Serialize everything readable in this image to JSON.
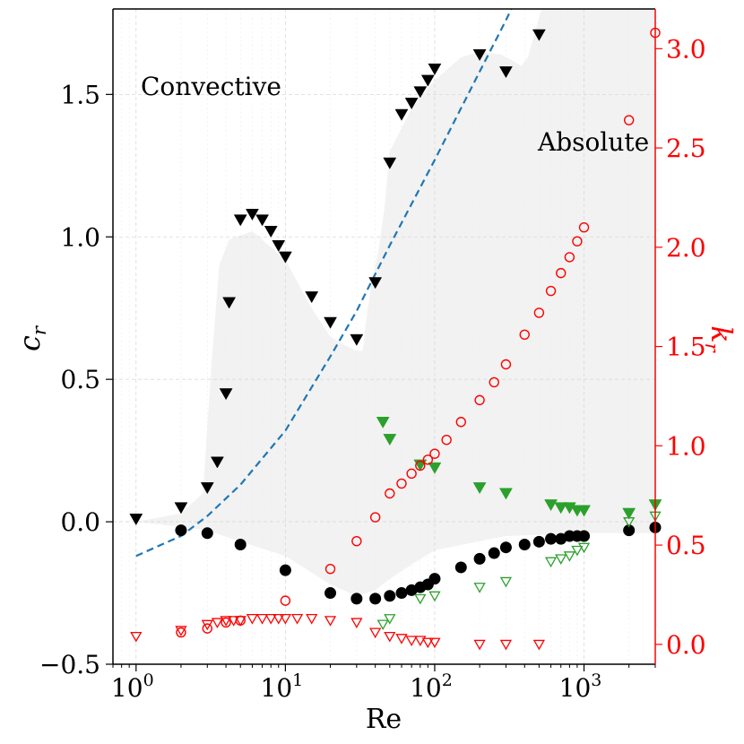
{
  "chart_data": {
    "type": "scatter",
    "x_label": "Re",
    "y_label_left": "c",
    "y_label_left_sub": "r",
    "y_label_right": "k",
    "y_label_right_sub": "r",
    "x_scale": "log",
    "xlim": [
      0.7,
      3000
    ],
    "ylim_left": [
      -0.5,
      1.8
    ],
    "ylim_right": [
      -0.1,
      3.2
    ],
    "x_ticks": [
      {
        "value": 1,
        "base": "10",
        "exp": "0"
      },
      {
        "value": 10,
        "base": "10",
        "exp": "1"
      },
      {
        "value": 100,
        "base": "10",
        "exp": "2"
      },
      {
        "value": 1000,
        "base": "10",
        "exp": "3"
      }
    ],
    "y_ticks_left": [
      {
        "value": -0.5,
        "label": "−0.5"
      },
      {
        "value": 0.0,
        "label": "0.0"
      },
      {
        "value": 0.5,
        "label": "0.5"
      },
      {
        "value": 1.0,
        "label": "1.0"
      },
      {
        "value": 1.5,
        "label": "1.5"
      }
    ],
    "y_ticks_right": [
      {
        "value": 0.0,
        "label": "0.0"
      },
      {
        "value": 0.5,
        "label": "0.5"
      },
      {
        "value": 1.0,
        "label": "1.0"
      },
      {
        "value": 1.5,
        "label": "1.5"
      },
      {
        "value": 2.0,
        "label": "2.0"
      },
      {
        "value": 2.5,
        "label": "2.5"
      },
      {
        "value": 3.0,
        "label": "3.0"
      }
    ],
    "annotations": [
      {
        "text": "Convective",
        "x": 1.0,
        "y": 1.55
      },
      {
        "text": "Absolute",
        "x": 450,
        "y": 1.33
      }
    ],
    "colors": {
      "black": "#000000",
      "green": "#2ca02c",
      "red": "#ff0000",
      "blue": "#1f77b4",
      "region": "#f2f2f2"
    },
    "absolute_region": {
      "upper": [
        [
          1,
          0.0
        ],
        [
          2,
          0.03
        ],
        [
          2.8,
          0.1
        ],
        [
          3.2,
          0.55
        ],
        [
          3.6,
          0.9
        ],
        [
          4.2,
          0.99
        ],
        [
          6,
          1.02
        ],
        [
          10,
          0.92
        ],
        [
          15,
          0.75
        ],
        [
          20,
          0.65
        ],
        [
          25,
          0.62
        ],
        [
          30,
          0.6
        ],
        [
          33,
          0.6
        ],
        [
          35,
          0.72
        ],
        [
          38,
          0.85
        ],
        [
          42,
          0.95
        ],
        [
          46,
          1.1
        ],
        [
          50,
          1.3
        ],
        [
          70,
          1.45
        ],
        [
          100,
          1.55
        ],
        [
          150,
          1.63
        ],
        [
          200,
          1.65
        ],
        [
          280,
          1.64
        ],
        [
          330,
          1.62
        ],
        [
          380,
          1.6
        ],
        [
          420,
          1.63
        ],
        [
          470,
          1.72
        ],
        [
          520,
          1.8
        ],
        [
          3000,
          1.8
        ]
      ],
      "lower": [
        [
          3000,
          -0.04
        ],
        [
          1000,
          -0.04
        ],
        [
          300,
          -0.05
        ],
        [
          100,
          -0.1
        ],
        [
          70,
          -0.15
        ],
        [
          50,
          -0.2
        ],
        [
          40,
          -0.24
        ],
        [
          30,
          -0.26
        ],
        [
          20,
          -0.22
        ],
        [
          10,
          -0.12
        ],
        [
          5,
          -0.07
        ],
        [
          3,
          -0.03
        ],
        [
          1.5,
          -0.01
        ],
        [
          1,
          0.0
        ]
      ]
    },
    "dashed_curve": {
      "name": "fit",
      "points": [
        [
          1,
          -0.12
        ],
        [
          2,
          -0.05
        ],
        [
          3,
          0.02
        ],
        [
          5,
          0.13
        ],
        [
          10,
          0.32
        ],
        [
          20,
          0.58
        ],
        [
          30,
          0.74
        ],
        [
          50,
          0.97
        ],
        [
          100,
          1.27
        ],
        [
          200,
          1.58
        ],
        [
          300,
          1.76
        ],
        [
          340,
          1.82
        ]
      ]
    },
    "series": [
      {
        "name": "black-triangles",
        "axis": "left",
        "marker": "triangle-down-filled",
        "color": "#000000",
        "points": [
          [
            1,
            0.01
          ],
          [
            2,
            0.05
          ],
          [
            3,
            0.12
          ],
          [
            3.5,
            0.21
          ],
          [
            4,
            0.45
          ],
          [
            4.2,
            0.77
          ],
          [
            5,
            1.06
          ],
          [
            6,
            1.08
          ],
          [
            7,
            1.06
          ],
          [
            8,
            1.02
          ],
          [
            9,
            0.97
          ],
          [
            10,
            0.93
          ],
          [
            15,
            0.79
          ],
          [
            20,
            0.7
          ],
          [
            30,
            0.64
          ],
          [
            40,
            0.84
          ],
          [
            50,
            1.26
          ],
          [
            60,
            1.43
          ],
          [
            70,
            1.47
          ],
          [
            80,
            1.51
          ],
          [
            90,
            1.55
          ],
          [
            100,
            1.59
          ],
          [
            200,
            1.64
          ],
          [
            300,
            1.58
          ],
          [
            500,
            1.71
          ]
        ]
      },
      {
        "name": "black-circles",
        "axis": "left",
        "marker": "circle-filled",
        "color": "#000000",
        "points": [
          [
            2,
            -0.03
          ],
          [
            3,
            -0.04
          ],
          [
            5,
            -0.08
          ],
          [
            10,
            -0.17
          ],
          [
            20,
            -0.25
          ],
          [
            30,
            -0.27
          ],
          [
            40,
            -0.27
          ],
          [
            50,
            -0.26
          ],
          [
            60,
            -0.25
          ],
          [
            70,
            -0.24
          ],
          [
            80,
            -0.23
          ],
          [
            90,
            -0.22
          ],
          [
            100,
            -0.2
          ],
          [
            150,
            -0.16
          ],
          [
            200,
            -0.13
          ],
          [
            250,
            -0.11
          ],
          [
            300,
            -0.09
          ],
          [
            400,
            -0.08
          ],
          [
            500,
            -0.07
          ],
          [
            600,
            -0.06
          ],
          [
            700,
            -0.06
          ],
          [
            800,
            -0.05
          ],
          [
            900,
            -0.05
          ],
          [
            1000,
            -0.05
          ],
          [
            2000,
            -0.03
          ],
          [
            3000,
            -0.02
          ]
        ]
      },
      {
        "name": "green-filled-triangles",
        "axis": "left",
        "marker": "triangle-down-filled",
        "color": "#2ca02c",
        "points": [
          [
            45,
            0.35
          ],
          [
            50,
            0.29
          ],
          [
            80,
            0.2
          ],
          [
            100,
            0.19
          ],
          [
            200,
            0.12
          ],
          [
            300,
            0.1
          ],
          [
            600,
            0.06
          ],
          [
            700,
            0.05
          ],
          [
            800,
            0.05
          ],
          [
            900,
            0.04
          ],
          [
            1000,
            0.04
          ],
          [
            2000,
            0.03
          ],
          [
            3000,
            0.06
          ]
        ]
      },
      {
        "name": "green-open-triangles",
        "axis": "left",
        "marker": "triangle-down-open",
        "color": "#2ca02c",
        "points": [
          [
            45,
            -0.36
          ],
          [
            50,
            -0.34
          ],
          [
            80,
            -0.27
          ],
          [
            100,
            -0.26
          ],
          [
            200,
            -0.23
          ],
          [
            300,
            -0.21
          ],
          [
            600,
            -0.14
          ],
          [
            700,
            -0.13
          ],
          [
            800,
            -0.12
          ],
          [
            900,
            -0.1
          ],
          [
            1000,
            -0.09
          ],
          [
            2000,
            0.0
          ],
          [
            3000,
            0.02
          ]
        ]
      },
      {
        "name": "red-open-circles",
        "axis": "right",
        "marker": "circle-open",
        "color": "#ff0000",
        "points": [
          [
            2,
            0.06
          ],
          [
            3,
            0.08
          ],
          [
            4,
            0.11
          ],
          [
            5,
            0.12
          ],
          [
            10,
            0.22
          ],
          [
            20,
            0.38
          ],
          [
            30,
            0.52
          ],
          [
            40,
            0.64
          ],
          [
            50,
            0.76
          ],
          [
            60,
            0.81
          ],
          [
            70,
            0.86
          ],
          [
            80,
            0.9
          ],
          [
            90,
            0.93
          ],
          [
            100,
            0.96
          ],
          [
            120,
            1.03
          ],
          [
            150,
            1.12
          ],
          [
            200,
            1.23
          ],
          [
            250,
            1.32
          ],
          [
            300,
            1.41
          ],
          [
            400,
            1.56
          ],
          [
            500,
            1.67
          ],
          [
            600,
            1.78
          ],
          [
            700,
            1.87
          ],
          [
            800,
            1.95
          ],
          [
            900,
            2.03
          ],
          [
            1000,
            2.1
          ],
          [
            2000,
            2.64
          ],
          [
            3000,
            3.08
          ]
        ]
      },
      {
        "name": "red-open-triangles",
        "axis": "right",
        "marker": "triangle-down-open",
        "color": "#ff0000",
        "points": [
          [
            1,
            0.04
          ],
          [
            2,
            0.07
          ],
          [
            3,
            0.1
          ],
          [
            3.5,
            0.11
          ],
          [
            4,
            0.12
          ],
          [
            4.5,
            0.12
          ],
          [
            5,
            0.12
          ],
          [
            6,
            0.13
          ],
          [
            7,
            0.13
          ],
          [
            8,
            0.13
          ],
          [
            9,
            0.13
          ],
          [
            10,
            0.13
          ],
          [
            12,
            0.13
          ],
          [
            15,
            0.13
          ],
          [
            20,
            0.12
          ],
          [
            30,
            0.11
          ],
          [
            40,
            0.06
          ],
          [
            50,
            0.04
          ],
          [
            60,
            0.03
          ],
          [
            70,
            0.02
          ],
          [
            80,
            0.02
          ],
          [
            90,
            0.01
          ],
          [
            100,
            0.01
          ],
          [
            200,
            0.0
          ],
          [
            300,
            0.0
          ],
          [
            500,
            0.0
          ]
        ]
      }
    ]
  }
}
